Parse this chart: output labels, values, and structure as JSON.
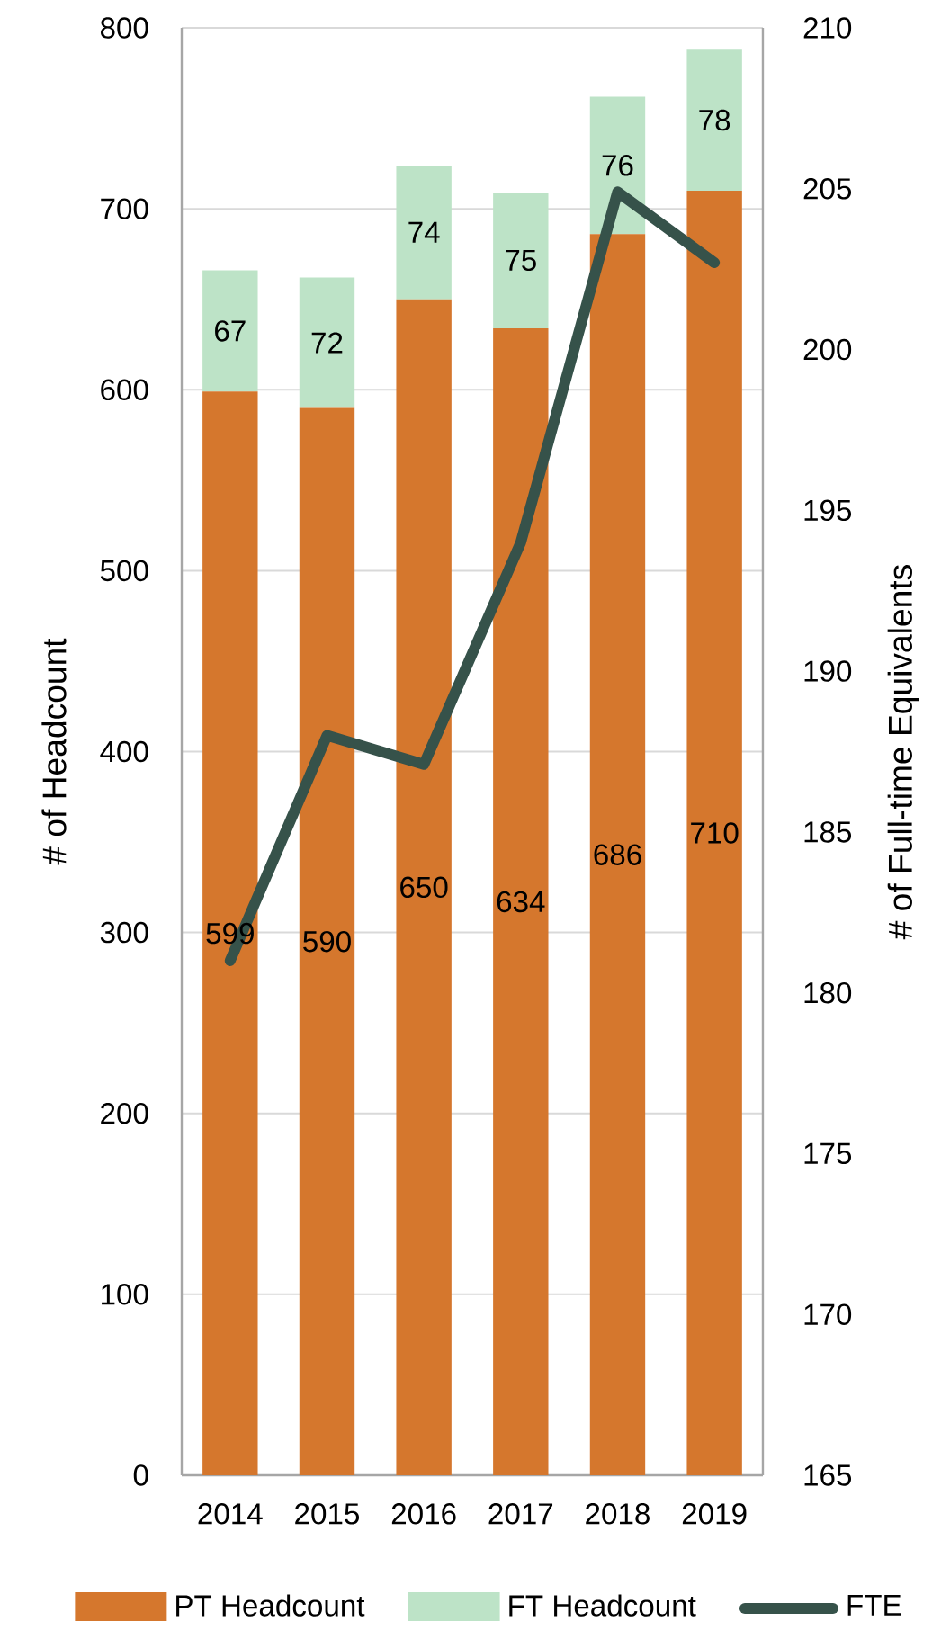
{
  "chart_data": {
    "type": "bar",
    "stacked": true,
    "categories": [
      "2014",
      "2015",
      "2016",
      "2017",
      "2018",
      "2019"
    ],
    "series": [
      {
        "name": "PT Headcount",
        "color": "#d5772d",
        "values": [
          599,
          590,
          650,
          634,
          686,
          710
        ],
        "value_labels": [
          "599",
          "590",
          "650",
          "634",
          "686",
          "710"
        ]
      },
      {
        "name": "FT Headcount",
        "color": "#bde3c7",
        "values": [
          67,
          72,
          74,
          75,
          76,
          78
        ],
        "value_labels": [
          "67",
          "72",
          "74",
          "75",
          "76",
          "78"
        ]
      },
      {
        "name": "FTE",
        "type": "line",
        "axis": "y2",
        "color": "#36524a",
        "values": [
          181,
          188,
          187.1,
          194,
          204.9,
          202.7
        ]
      }
    ],
    "ylabel": "# of Headcount",
    "y2label": "# of Full-time Equivalents",
    "ylim": [
      0,
      800
    ],
    "yticks": [
      0,
      100,
      200,
      300,
      400,
      500,
      600,
      700,
      800
    ],
    "y2lim": [
      165,
      210
    ],
    "y2ticks": [
      165,
      170,
      175,
      180,
      185,
      190,
      195,
      200,
      205,
      210
    ],
    "grid": "y",
    "legend": "bottom"
  }
}
